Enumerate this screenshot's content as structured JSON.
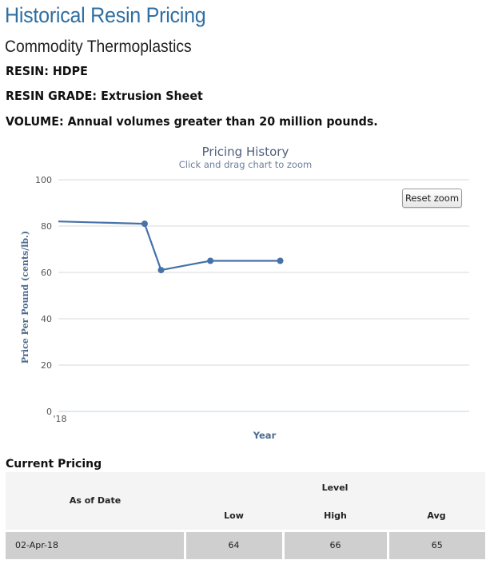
{
  "header": {
    "title": "Historical Resin Pricing",
    "subtitle": "Commodity Thermoplastics"
  },
  "info": {
    "resin_label": "RESIN:",
    "resin_value": "HDPE",
    "grade_label": "RESIN GRADE:",
    "grade_value": "Extrusion Sheet",
    "volume_label": "VOLUME:",
    "volume_value": "Annual volumes greater than 20 million pounds."
  },
  "chart_data": {
    "type": "line",
    "title": "Pricing History",
    "subtitle": "Click and drag chart to zoom",
    "xlabel": "Year",
    "ylabel": "Price Per Pound (cents/lb.)",
    "x_tick_labels": [
      "'18"
    ],
    "ylim": [
      0,
      100
    ],
    "y_ticks": [
      0,
      20,
      40,
      60,
      80,
      100
    ],
    "grid": true,
    "legend": "none",
    "series": [
      {
        "color": "#4572a7",
        "points": [
          {
            "x": 0.0,
            "y": 82,
            "marker": false
          },
          {
            "x": 0.21,
            "y": 81,
            "marker": true
          },
          {
            "x": 0.25,
            "y": 61,
            "marker": true
          },
          {
            "x": 0.37,
            "y": 65,
            "marker": true
          },
          {
            "x": 0.54,
            "y": 65,
            "marker": true
          }
        ]
      }
    ],
    "reset_zoom_label": "Reset zoom"
  },
  "pricing": {
    "heading": "Current Pricing",
    "col_date": "As of Date",
    "col_level": "Level",
    "col_low": "Low",
    "col_high": "High",
    "col_avg": "Avg",
    "rows": [
      {
        "date": "02-Apr-18",
        "low": "64",
        "high": "66",
        "avg": "65"
      }
    ]
  }
}
